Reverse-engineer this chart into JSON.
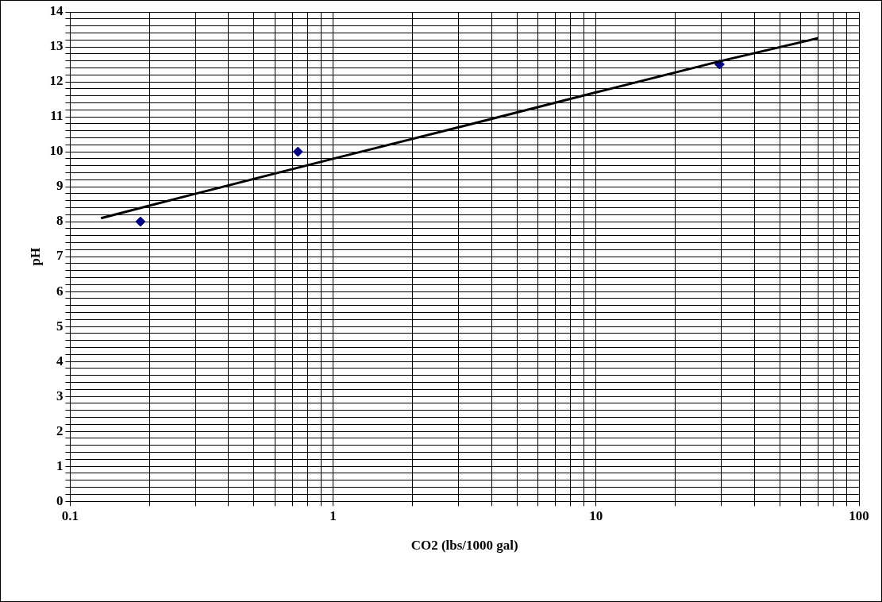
{
  "chart_data": {
    "type": "scatter",
    "xlabel": "CO2 (lbs/1000 gal)",
    "ylabel": "pH",
    "log": "x",
    "grid": true,
    "legend": false,
    "xlim": [
      0.1,
      100
    ],
    "xticks": [
      0.1,
      {
        "value": 0.2,
        "label": null
      },
      {
        "value": 0.3,
        "label": null
      },
      {
        "value": 0.4,
        "label": null
      },
      {
        "value": 0.5,
        "label": null
      },
      {
        "value": 0.6,
        "label": null
      },
      {
        "value": 0.7,
        "label": null
      },
      {
        "value": 0.8,
        "label": null
      },
      {
        "value": 0.9,
        "label": null
      },
      1,
      {
        "value": 2,
        "label": null
      },
      {
        "value": 3,
        "label": null
      },
      {
        "value": 4,
        "label": null
      },
      {
        "value": 5,
        "label": null
      },
      {
        "value": 6,
        "label": null
      },
      {
        "value": 7,
        "label": null
      },
      {
        "value": 8,
        "label": null
      },
      {
        "value": 9,
        "label": null
      },
      10,
      {
        "value": 20,
        "label": null
      },
      {
        "value": 30,
        "label": null
      },
      {
        "value": 40,
        "label": null
      },
      {
        "value": 50,
        "label": null
      },
      {
        "value": 60,
        "label": null
      },
      {
        "value": 70,
        "label": null
      },
      {
        "value": 80,
        "label": null
      },
      {
        "value": 90,
        "label": null
      },
      100
    ],
    "ylim": [
      0,
      14
    ],
    "yticks": [
      0,
      {
        "value": 0.2,
        "label": null
      },
      {
        "value": 0.4,
        "label": null
      },
      {
        "value": 0.6,
        "label": null
      },
      {
        "value": 0.8,
        "label": null
      },
      1,
      {
        "value": 1.2,
        "label": null
      },
      {
        "value": 1.4,
        "label": null
      },
      {
        "value": 1.6,
        "label": null
      },
      {
        "value": 1.8,
        "label": null
      },
      2,
      {
        "value": 2.2,
        "label": null
      },
      {
        "value": 2.4,
        "label": null
      },
      {
        "value": 2.6,
        "label": null
      },
      {
        "value": 2.8,
        "label": null
      },
      3,
      {
        "value": 3.2,
        "label": null
      },
      {
        "value": 3.4,
        "label": null
      },
      {
        "value": 3.6,
        "label": null
      },
      {
        "value": 3.8,
        "label": null
      },
      4,
      {
        "value": 4.2,
        "label": null
      },
      {
        "value": 4.4,
        "label": null
      },
      {
        "value": 4.6,
        "label": null
      },
      {
        "value": 4.8,
        "label": null
      },
      5,
      {
        "value": 5.2,
        "label": null
      },
      {
        "value": 5.4,
        "label": null
      },
      {
        "value": 5.6,
        "label": null
      },
      {
        "value": 5.8,
        "label": null
      },
      6,
      {
        "value": 6.2,
        "label": null
      },
      {
        "value": 6.4,
        "label": null
      },
      {
        "value": 6.6,
        "label": null
      },
      {
        "value": 6.8,
        "label": null
      },
      7,
      {
        "value": 7.2,
        "label": null
      },
      {
        "value": 7.4,
        "label": null
      },
      {
        "value": 7.6,
        "label": null
      },
      {
        "value": 7.8,
        "label": null
      },
      8,
      {
        "value": 8.2,
        "label": null
      },
      {
        "value": 8.4,
        "label": null
      },
      {
        "value": 8.6,
        "label": null
      },
      {
        "value": 8.8,
        "label": null
      },
      9,
      {
        "value": 9.2,
        "label": null
      },
      {
        "value": 9.4,
        "label": null
      },
      {
        "value": 9.6,
        "label": null
      },
      {
        "value": 9.8,
        "label": null
      },
      10,
      {
        "value": 10.2,
        "label": null
      },
      {
        "value": 10.4,
        "label": null
      },
      {
        "value": 10.6,
        "label": null
      },
      {
        "value": 10.8,
        "label": null
      },
      11,
      {
        "value": 11.2,
        "label": null
      },
      {
        "value": 11.4,
        "label": null
      },
      {
        "value": 11.6,
        "label": null
      },
      {
        "value": 11.8,
        "label": null
      },
      12,
      {
        "value": 12.2,
        "label": null
      },
      {
        "value": 12.4,
        "label": null
      },
      {
        "value": 12.6,
        "label": null
      },
      {
        "value": 12.8,
        "label": null
      },
      13,
      {
        "value": 13.2,
        "label": null
      },
      {
        "value": 13.4,
        "label": null
      },
      {
        "value": 13.6,
        "label": null
      },
      {
        "value": 13.8,
        "label": null
      },
      14
    ],
    "series": [
      {
        "type": "line",
        "color": "#000000",
        "marker": "none",
        "line_style": "solid",
        "x": [
          0.131,
          0.3,
          1,
          3,
          10,
          30,
          70
        ],
        "values": [
          8.1,
          8.8,
          9.8,
          10.7,
          11.7,
          12.6,
          13.25
        ]
      },
      {
        "type": "scatter",
        "color": "#000080",
        "marker": "diamond",
        "x": [
          0.185,
          0.735,
          29.5
        ],
        "values": [
          8.0,
          10.0,
          12.5
        ]
      }
    ]
  }
}
